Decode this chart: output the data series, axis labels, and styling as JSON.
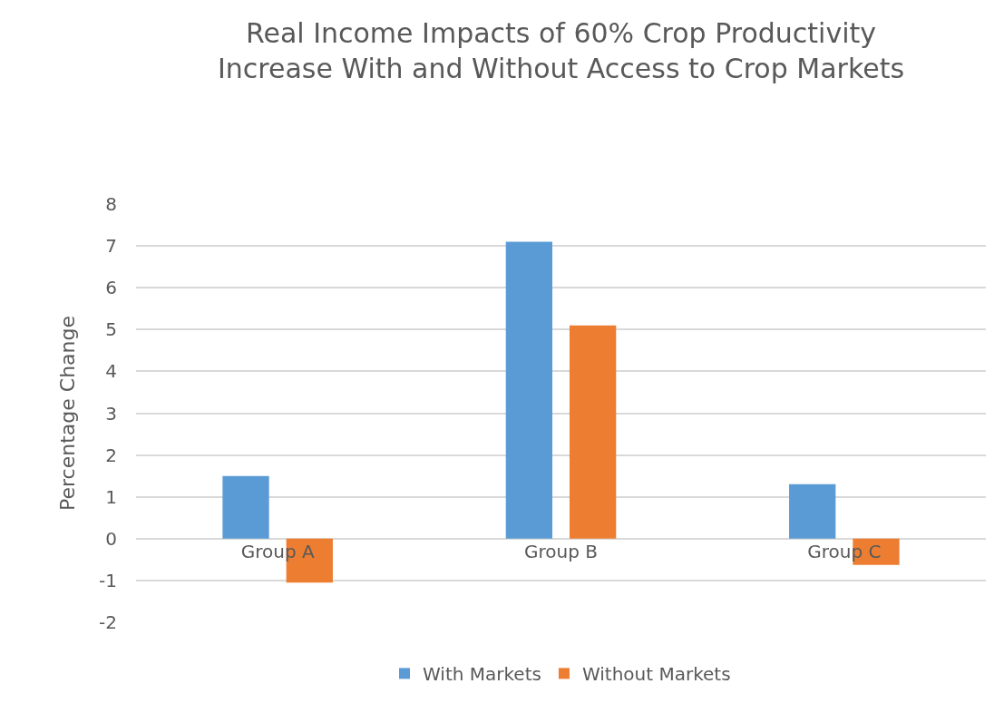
{
  "chart_data": {
    "type": "bar",
    "title": "Real Income Impacts of 60% Crop Productivity Increase With and Without Access to Crop Markets",
    "ylabel": "Percentage Change",
    "categories": [
      "Group A",
      "Group B",
      "Group C"
    ],
    "series": [
      {
        "name": "With Markets",
        "color": "#5b9bd5",
        "values": [
          1.5,
          7.1,
          1.3
        ]
      },
      {
        "name": "Without Markets",
        "color": "#ed7d31",
        "values": [
          -1.05,
          5.1,
          -0.63
        ]
      }
    ],
    "ylim": [
      -2,
      8
    ],
    "yticks": [
      -2,
      -1,
      0,
      1,
      2,
      3,
      4,
      5,
      6,
      7,
      8
    ],
    "grid": "y",
    "legend": "bottom"
  }
}
